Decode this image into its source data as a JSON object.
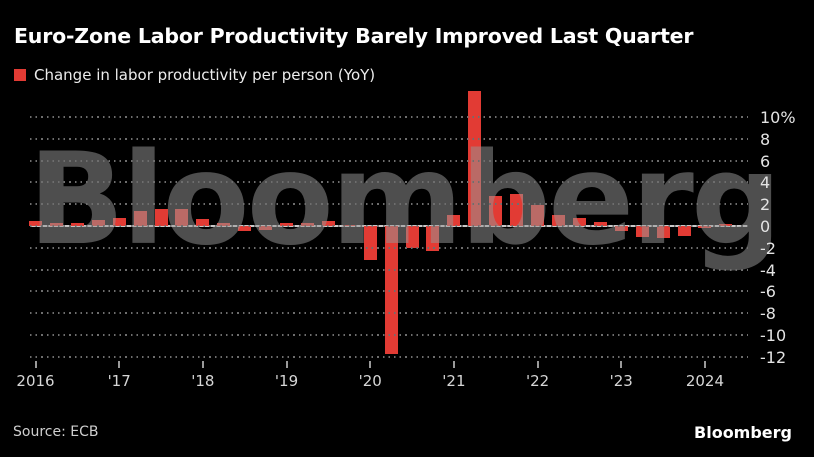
{
  "title": "Euro-Zone Labor Productivity Barely Improved Last Quarter",
  "legend": {
    "label": "Change in labor productivity per person (YoY)"
  },
  "watermark": "Bloomberg",
  "source": "Source: ECB",
  "brand": "Bloomberg",
  "colors": {
    "background": "#000000",
    "bar": "#e23b34",
    "zero_line": "#c9c9c9",
    "gridline_dots": "#6e6e6e",
    "watermark": "#969696"
  },
  "chart_data": {
    "type": "bar",
    "title": "Euro-Zone Labor Productivity Barely Improved Last Quarter",
    "series_name": "Change in labor productivity per person (YoY)",
    "unit": "%",
    "categories": [
      "2016 Q1",
      "2016 Q2",
      "2016 Q3",
      "2016 Q4",
      "2017 Q1",
      "2017 Q2",
      "2017 Q3",
      "2017 Q4",
      "2018 Q1",
      "2018 Q2",
      "2018 Q3",
      "2018 Q4",
      "2019 Q1",
      "2019 Q2",
      "2019 Q3",
      "2019 Q4",
      "2020 Q1",
      "2020 Q2",
      "2020 Q3",
      "2020 Q4",
      "2021 Q1",
      "2021 Q2",
      "2021 Q3",
      "2021 Q4",
      "2022 Q1",
      "2022 Q2",
      "2022 Q3",
      "2022 Q4",
      "2023 Q1",
      "2023 Q2",
      "2023 Q3",
      "2023 Q4",
      "2024 Q1",
      "2024 Q2"
    ],
    "values": [
      0.5,
      0.25,
      0.3,
      0.55,
      0.75,
      1.4,
      1.55,
      1.6,
      0.6,
      0.25,
      -0.45,
      -0.4,
      0.3,
      0.25,
      0.45,
      0.1,
      -3.1,
      -11.7,
      -2.0,
      -2.3,
      1.05,
      12.4,
      2.75,
      2.95,
      1.95,
      1.0,
      0.7,
      0.35,
      -0.5,
      -1.05,
      -1.1,
      -0.9,
      -0.2,
      0.2
    ],
    "ylim": [
      -12,
      10
    ],
    "yticks": [
      10,
      8,
      6,
      4,
      2,
      0,
      -2,
      -4,
      -6,
      -8,
      -10,
      -12
    ],
    "ytick_labels": [
      "10%",
      "8",
      "6",
      "4",
      "2",
      "0",
      "-2",
      "-4",
      "-6",
      "-8",
      "-10",
      "-12"
    ],
    "xtick_labels": [
      "2016",
      "'17",
      "'18",
      "'19",
      "'20",
      "'21",
      "'22",
      "'23",
      "2024"
    ],
    "grid": "dotted horizontal",
    "legend_position": "top-left",
    "xlabel": "",
    "ylabel": ""
  }
}
